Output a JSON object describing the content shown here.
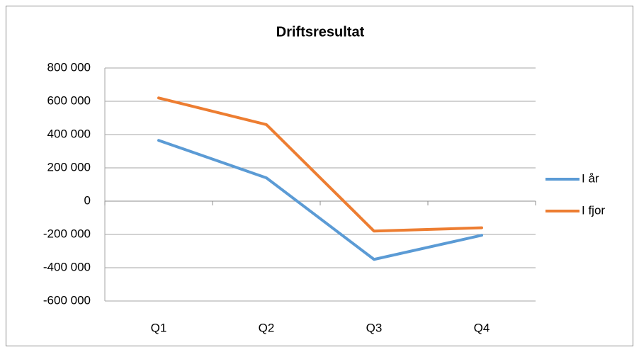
{
  "chart_data": {
    "type": "line",
    "title": "Driftsresultat",
    "categories": [
      "Q1",
      "Q2",
      "Q3",
      "Q4"
    ],
    "series": [
      {
        "name": "I år",
        "color": "#5b9bd5",
        "values": [
          365000,
          140000,
          -350000,
          -205000
        ]
      },
      {
        "name": "I fjor",
        "color": "#ed7d31",
        "values": [
          620000,
          460000,
          -180000,
          -160000
        ]
      }
    ],
    "ylim": [
      -600000,
      800000
    ],
    "yticks": [
      {
        "value": -600000,
        "label": "-600 000"
      },
      {
        "value": -400000,
        "label": "-400 000"
      },
      {
        "value": -200000,
        "label": "-200 000"
      },
      0,
      {
        "value": 200000,
        "label": "200 000"
      },
      {
        "value": 400000,
        "label": "400 000"
      },
      {
        "value": 600000,
        "label": "600 000"
      },
      {
        "value": 800000,
        "label": "800 000"
      }
    ],
    "grid": true,
    "legend": "right"
  }
}
